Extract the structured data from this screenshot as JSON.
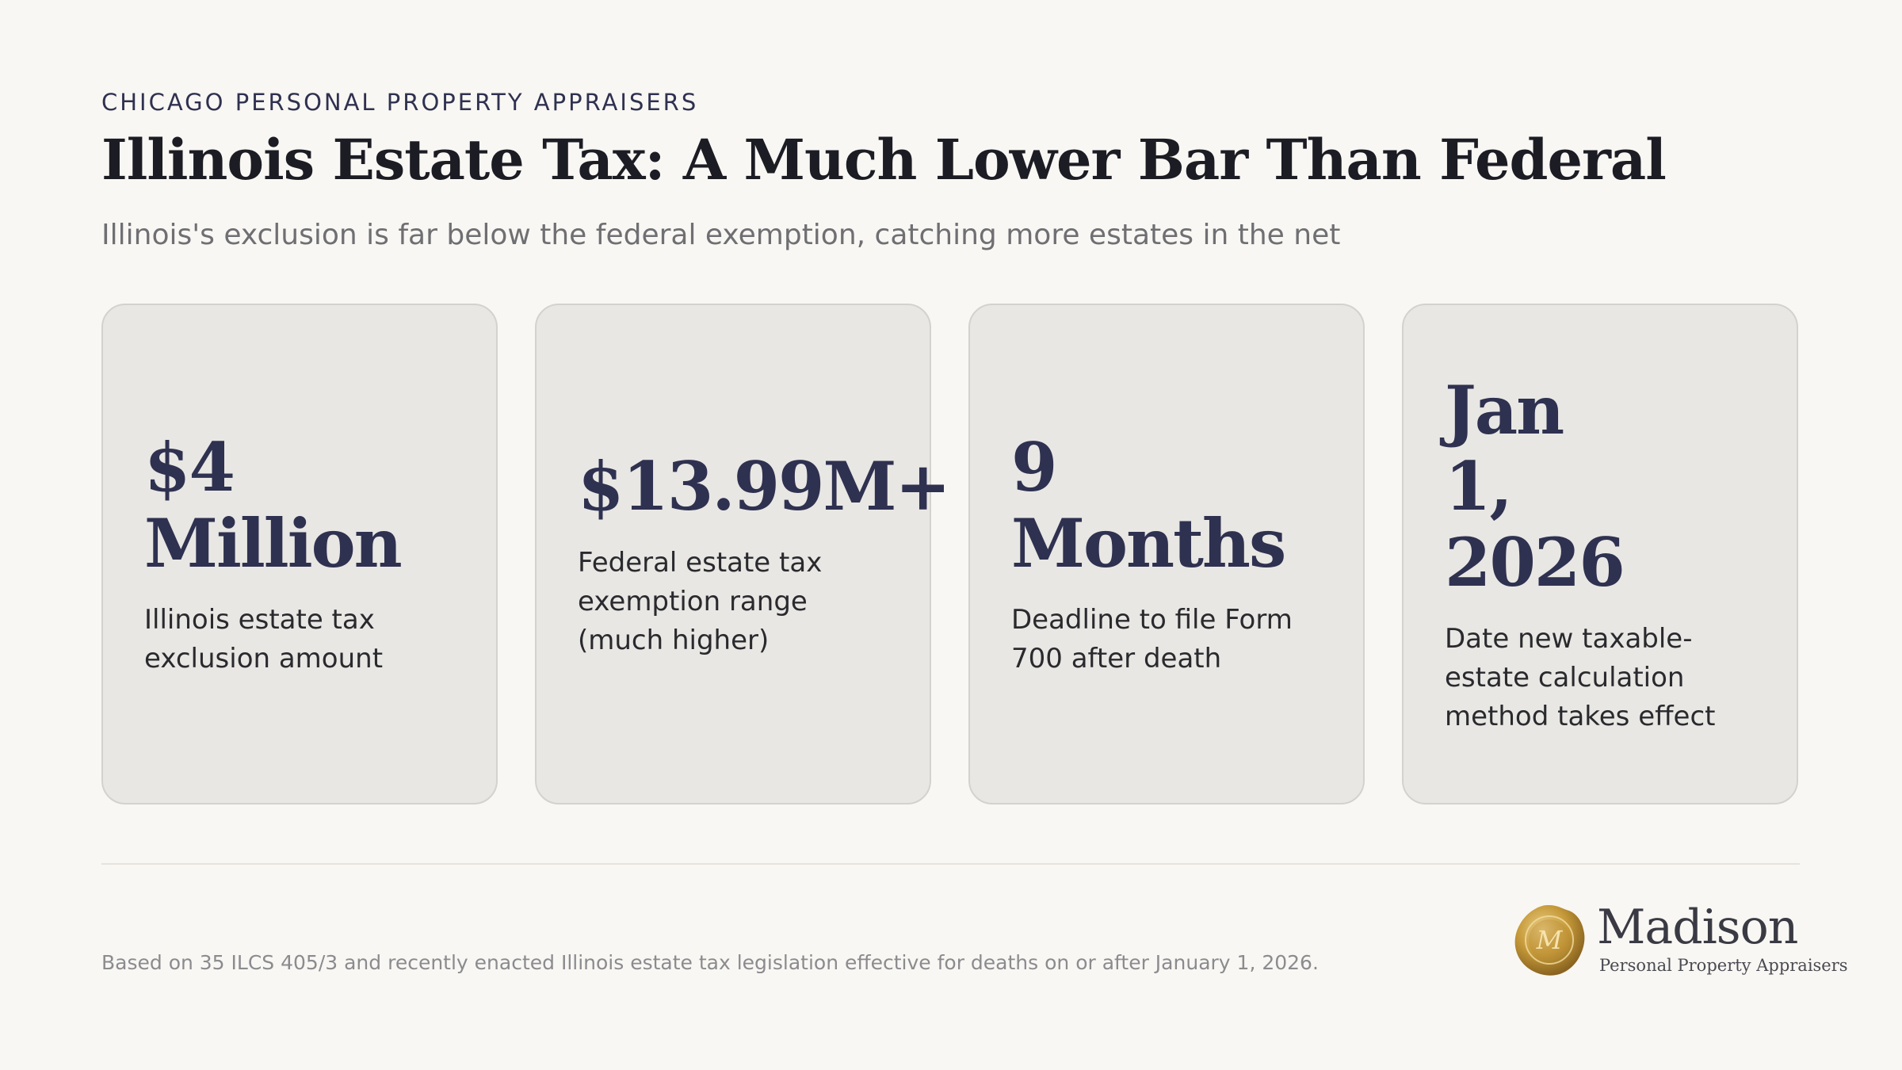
{
  "header": {
    "eyebrow": "CHICAGO PERSONAL PROPERTY APPRAISERS",
    "title": "Illinois Estate Tax: A Much Lower Bar Than Federal",
    "subtitle": "Illinois's exclusion is far below the federal exemption, catching more estates in the net"
  },
  "cards": [
    {
      "stat": "$4 Million",
      "description": "Illinois estate tax exclusion amount"
    },
    {
      "stat": "$13.99M+",
      "description": "Federal estate tax exemption range (much higher)"
    },
    {
      "stat": "9 Months",
      "description": "Deadline to file Form 700 after death"
    },
    {
      "stat": "Jan 1, 2026",
      "description": "Date new taxable-estate calculation method takes effect"
    }
  ],
  "footer": {
    "note": "Based on 35 ILCS 405/3 and recently enacted Illinois estate tax legislation effective for deaths on or after January 1, 2026.",
    "logo_name": "Madison",
    "logo_tagline": "Personal Property Appraisers",
    "logo_monogram": "M"
  },
  "colors": {
    "background": "#f9f7f3",
    "card": "#e8e7e4",
    "accent": "#2f3150",
    "seal_gold": "#c69a3a"
  }
}
